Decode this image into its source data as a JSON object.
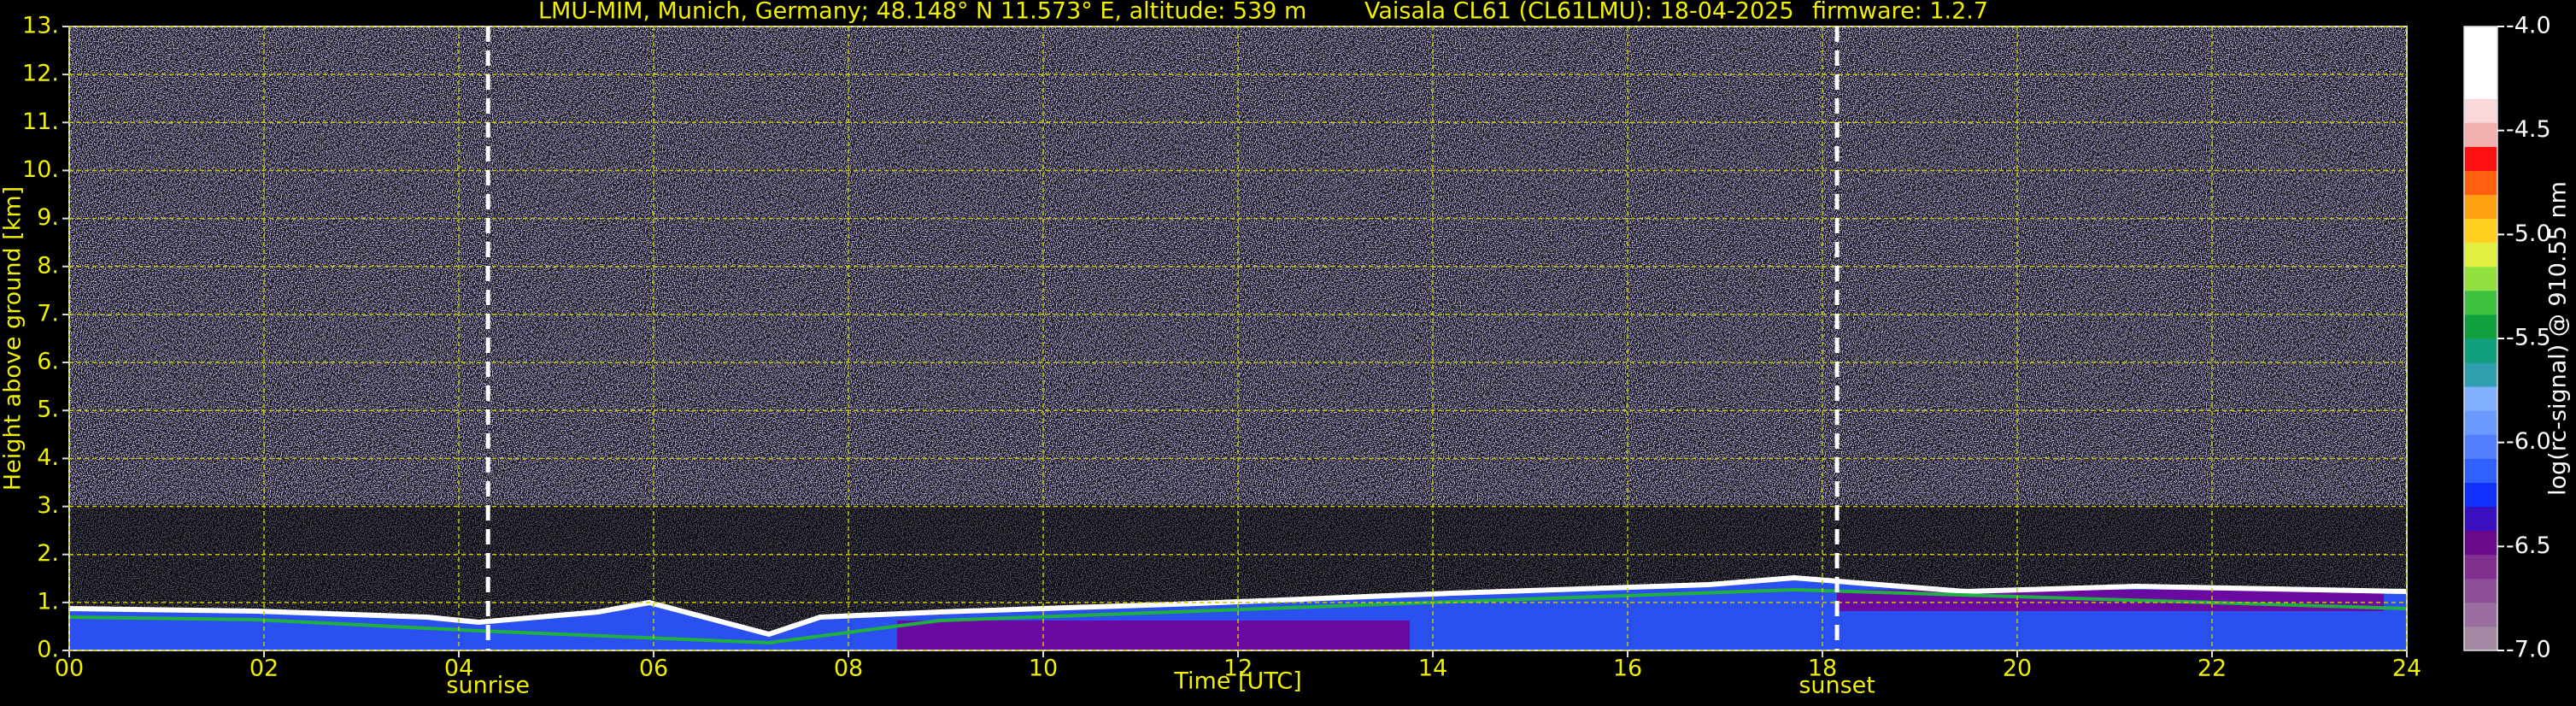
{
  "chart_data": {
    "type": "heatmap",
    "title_segments": [
      "LMU-MIM, Munich, Germany; 48.148° N 11.573° E, altitude: 539 m",
      "Vaisala CL61 (CL61LMU): 18-04-2025",
      "firmware: 1.2.7"
    ],
    "x_label": "Time [UTC]",
    "y_label": "Height above ground [km]",
    "xlim": [
      0,
      24
    ],
    "xticks": [
      {
        "value": 0,
        "label": "00"
      },
      {
        "value": 2,
        "label": "02"
      },
      {
        "value": 4,
        "label": "04"
      },
      {
        "value": 6,
        "label": "06"
      },
      {
        "value": 8,
        "label": "08"
      },
      10,
      12,
      14,
      16,
      18,
      20,
      22,
      24
    ],
    "ylim": [
      0,
      13
    ],
    "yticks": [
      {
        "value": 0,
        "label": "0."
      },
      {
        "value": 1,
        "label": "1."
      },
      {
        "value": 2,
        "label": "2."
      },
      {
        "value": 3,
        "label": "3."
      },
      {
        "value": 4,
        "label": "4."
      },
      {
        "value": 5,
        "label": "5."
      },
      {
        "value": 6,
        "label": "6."
      },
      {
        "value": 7,
        "label": "7."
      },
      {
        "value": 8,
        "label": "8."
      },
      {
        "value": 9,
        "label": "9."
      },
      {
        "value": 10,
        "label": "10."
      },
      {
        "value": 11,
        "label": "11."
      },
      {
        "value": 12,
        "label": "12."
      },
      {
        "value": 13,
        "label": "13."
      }
    ],
    "grid": true,
    "grid_color": "#c8c800",
    "annotations": [
      {
        "x": 4.3,
        "label": "sunrise"
      },
      {
        "x": 18.15,
        "label": "sunset"
      }
    ],
    "colorbar": {
      "label": "log(rc-signal) @ 910.55 nm",
      "lim": [
        -7.0,
        -4.0
      ],
      "ticks": [
        {
          "value": -7.0,
          "label": "-7.0"
        },
        {
          "value": -6.5,
          "label": "-6.5"
        },
        {
          "value": -6.0,
          "label": "-6.0"
        },
        {
          "value": -5.5,
          "label": "-5.5"
        },
        {
          "value": -5.0,
          "label": "-5.0"
        },
        {
          "value": -4.5,
          "label": "-4.5"
        },
        {
          "value": -4.0,
          "label": "-4.0"
        }
      ],
      "colors": [
        "#a58aa5",
        "#9a6f9f",
        "#8e4f96",
        "#80308e",
        "#6a0a8a",
        "#3a10c0",
        "#1030ff",
        "#3060ff",
        "#5080ff",
        "#6a9aff",
        "#80b0ff",
        "#30a0b0",
        "#10a080",
        "#10a040",
        "#40c040",
        "#90e040",
        "#e0f040",
        "#ffd020",
        "#ffa010",
        "#ff6010",
        "#ff1010",
        "#f0b0b0",
        "#f8d8d8",
        "#ffffff",
        "#ffffff",
        "#ffffff"
      ]
    }
  }
}
